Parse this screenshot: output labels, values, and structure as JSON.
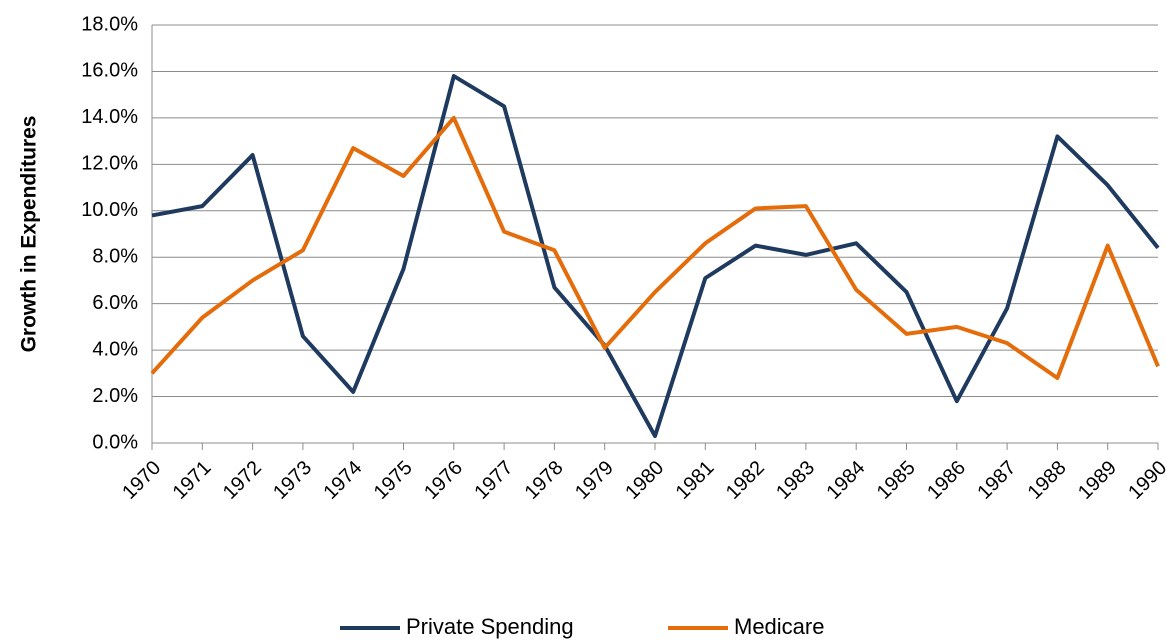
{
  "chart_data": {
    "type": "line",
    "ylabel": "Growth in Expenditures",
    "categories": [
      "1970",
      "1971",
      "1972",
      "1973",
      "1974",
      "1975",
      "1976",
      "1977",
      "1978",
      "1979",
      "1980",
      "1981",
      "1982",
      "1983",
      "1984",
      "1985",
      "1986",
      "1987",
      "1988",
      "1989",
      "1990"
    ],
    "series": [
      {
        "name": "Private Spending",
        "color": "#1f3a5f",
        "values": [
          9.8,
          10.2,
          12.4,
          4.6,
          2.2,
          7.5,
          15.8,
          14.5,
          6.7,
          4.2,
          0.3,
          7.1,
          8.5,
          8.1,
          8.6,
          6.5,
          1.8,
          5.8,
          13.2,
          11.1,
          8.4
        ]
      },
      {
        "name": "Medicare",
        "color": "#e46c0a",
        "values": [
          3.0,
          5.4,
          7.0,
          8.3,
          12.7,
          11.5,
          14.0,
          9.1,
          8.3,
          4.1,
          6.5,
          8.6,
          10.1,
          10.2,
          6.6,
          4.7,
          5.0,
          4.3,
          2.8,
          8.5,
          3.3
        ]
      }
    ],
    "ylim": [
      0,
      18
    ],
    "yticks": [
      {
        "value": 0,
        "label": "0.0%"
      },
      {
        "value": 2,
        "label": "2.0%"
      },
      {
        "value": 4,
        "label": "4.0%"
      },
      {
        "value": 6,
        "label": "6.0%"
      },
      {
        "value": 8,
        "label": "8.0%"
      },
      {
        "value": 10,
        "label": "10.0%"
      },
      {
        "value": 12,
        "label": "12.0%"
      },
      {
        "value": 14,
        "label": "14.0%"
      },
      {
        "value": 16,
        "label": "16.0%"
      },
      {
        "value": 18,
        "label": "18.0%"
      }
    ],
    "grid": true,
    "legend": "bottom"
  }
}
